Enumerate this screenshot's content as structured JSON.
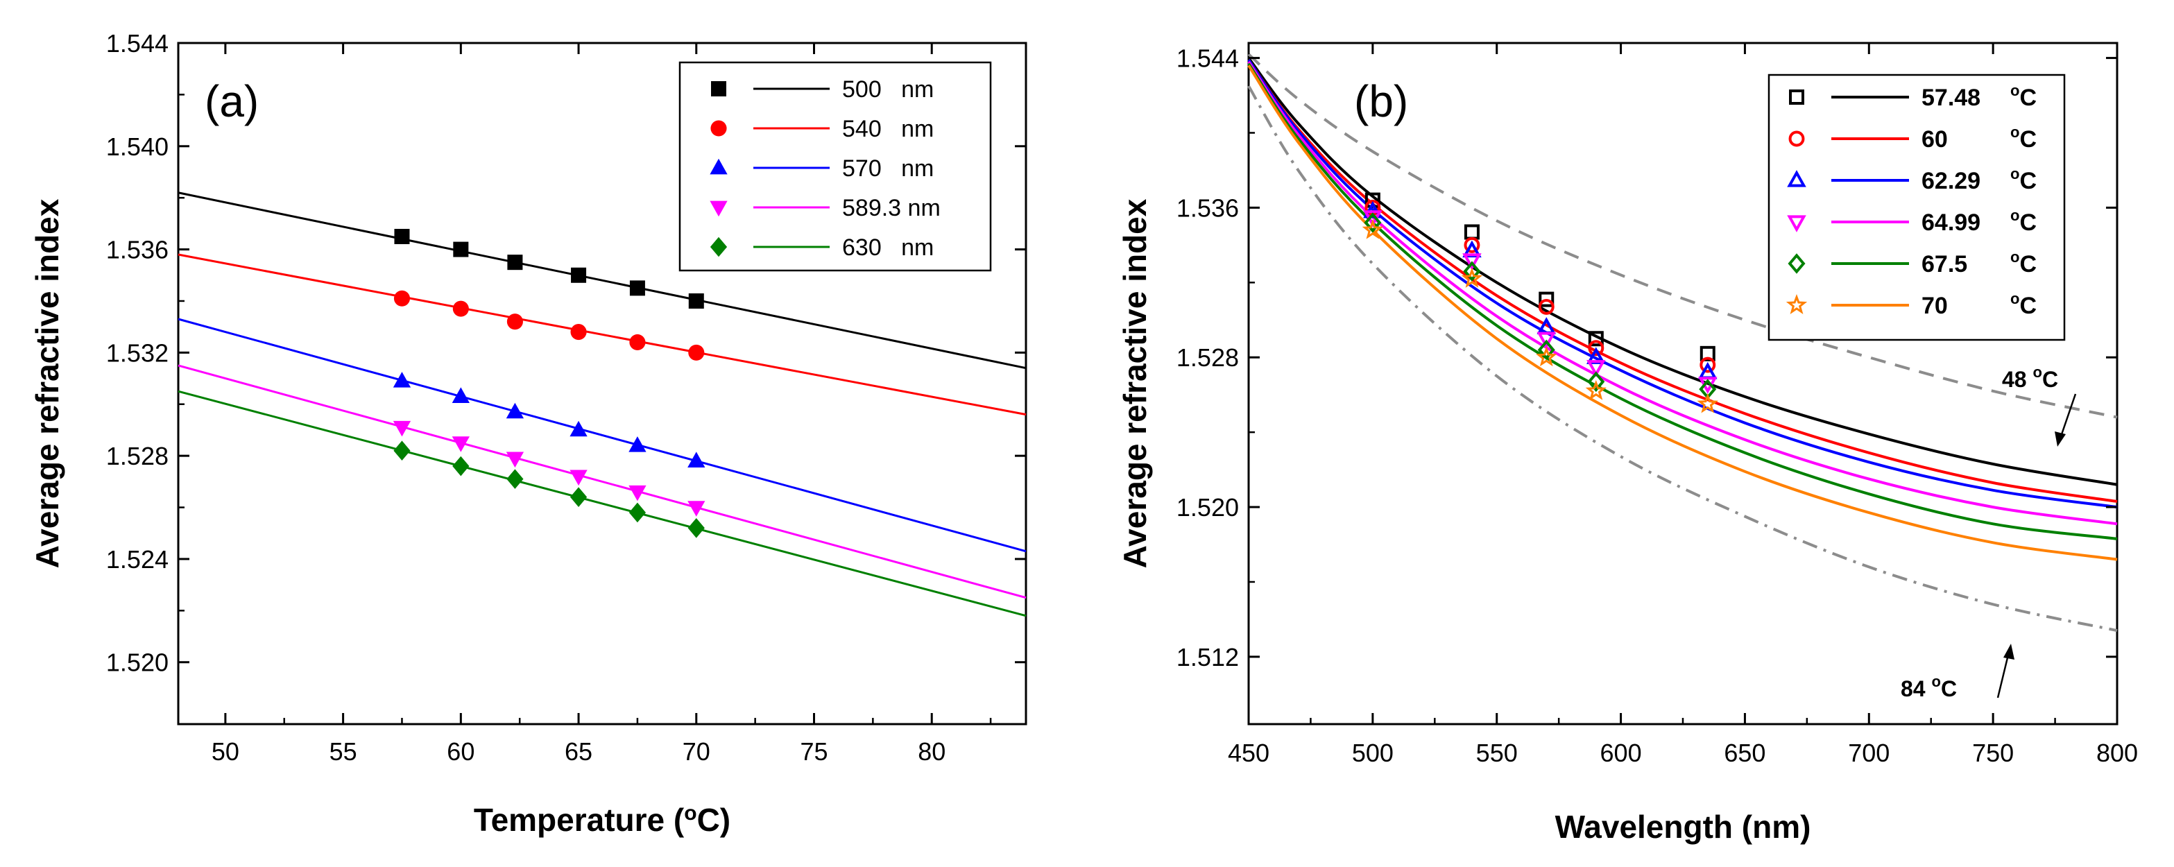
{
  "chart_data": [
    {
      "type": "scatter",
      "panel_label": "(a)",
      "xlabel": "Temperature (",
      "xlabel_sup": "o",
      "xlabel_end": "C)",
      "ylabel": "Average refractive index",
      "xlim": [
        48,
        84
      ],
      "ylim": [
        1.5176,
        1.544
      ],
      "xticks": [
        50,
        55,
        60,
        65,
        70,
        75,
        80
      ],
      "yticks": [
        1.52,
        1.524,
        1.528,
        1.532,
        1.536,
        1.54,
        1.544
      ],
      "ytick_labels": [
        "1.520",
        "1.524",
        "1.528",
        "1.532",
        "1.536",
        "1.540",
        "1.544"
      ],
      "grid": false,
      "legend_position": "top-right",
      "series": [
        {
          "name": "500   nm",
          "color": "#000000",
          "marker": "square",
          "x": [
            57.5,
            60,
            62.3,
            65,
            67.5,
            70
          ],
          "y": [
            1.5365,
            1.536,
            1.5355,
            1.535,
            1.5345,
            1.534
          ],
          "fit": {
            "x": [
              48,
              84
            ],
            "y": [
              1.5382,
              1.5314
            ]
          }
        },
        {
          "name": "540   nm",
          "color": "#ff0000",
          "marker": "circle",
          "x": [
            57.5,
            60,
            62.3,
            65,
            67.5,
            70
          ],
          "y": [
            1.5341,
            1.5337,
            1.5332,
            1.5328,
            1.5324,
            1.532
          ],
          "fit": {
            "x": [
              48,
              84
            ],
            "y": [
              1.5358,
              1.5296
            ]
          }
        },
        {
          "name": "570   nm",
          "color": "#0000ff",
          "marker": "triangle-up",
          "x": [
            57.5,
            60,
            62.3,
            65,
            67.5,
            70
          ],
          "y": [
            1.5309,
            1.5303,
            1.5297,
            1.529,
            1.5284,
            1.5278
          ],
          "fit": {
            "x": [
              48,
              84
            ],
            "y": [
              1.5333,
              1.5243
            ]
          }
        },
        {
          "name": "589.3 nm",
          "color": "#ff00ff",
          "marker": "triangle-down",
          "x": [
            57.5,
            60,
            62.3,
            65,
            67.5,
            70
          ],
          "y": [
            1.5291,
            1.5285,
            1.5279,
            1.5272,
            1.5266,
            1.526
          ],
          "fit": {
            "x": [
              48,
              84
            ],
            "y": [
              1.5315,
              1.5225
            ]
          }
        },
        {
          "name": "630   nm",
          "color": "#008000",
          "marker": "diamond",
          "x": [
            57.5,
            60,
            62.3,
            65,
            67.5,
            70
          ],
          "y": [
            1.5282,
            1.5276,
            1.5271,
            1.5264,
            1.5258,
            1.5252
          ],
          "fit": {
            "x": [
              48,
              84
            ],
            "y": [
              1.5305,
              1.5218
            ]
          }
        }
      ]
    },
    {
      "type": "scatter",
      "panel_label": "(b)",
      "xlabel": "Wavelength (nm)",
      "ylabel": "Average refractive index",
      "xlim": [
        450,
        800
      ],
      "ylim": [
        1.5084,
        1.5448
      ],
      "xticks": [
        450,
        500,
        550,
        600,
        650,
        700,
        750,
        800
      ],
      "yticks": [
        1.512,
        1.52,
        1.528,
        1.536,
        1.544
      ],
      "ytick_labels": [
        "1.512",
        "1.520",
        "1.528",
        "1.536",
        "1.544"
      ],
      "grid": false,
      "legend_position": "top-right",
      "series": [
        {
          "name": "57.48",
          "unit": "C",
          "color": "#000000",
          "marker": "open-square",
          "x": [
            500,
            540,
            570,
            590,
            635
          ],
          "y": [
            1.5364,
            1.5347,
            1.5311,
            1.529,
            1.5282
          ],
          "fit": {
            "x": [
              450,
              470,
              500,
              550,
              600,
              650,
              700,
              750,
              800
            ],
            "y": [
              1.544,
              1.5405,
              1.5366,
              1.532,
              1.5285,
              1.5259,
              1.5239,
              1.5223,
              1.5212
            ]
          }
        },
        {
          "name": "60",
          "unit": "C",
          "color": "#ff0000",
          "marker": "open-circle",
          "x": [
            500,
            540,
            570,
            590,
            635
          ],
          "y": [
            1.536,
            1.534,
            1.5307,
            1.5285,
            1.5276
          ],
          "fit": {
            "x": [
              450,
              470,
              500,
              550,
              600,
              650,
              700,
              750,
              800
            ],
            "y": [
              1.5439,
              1.5402,
              1.5362,
              1.5313,
              1.5277,
              1.525,
              1.5229,
              1.5213,
              1.5203
            ]
          }
        },
        {
          "name": "62.29",
          "unit": "C",
          "color": "#0000ff",
          "marker": "open-triangle-up",
          "x": [
            500,
            540,
            570,
            590,
            635
          ],
          "y": [
            1.5358,
            1.5337,
            1.5296,
            1.528,
            1.5272
          ],
          "fit": {
            "x": [
              450,
              470,
              500,
              550,
              600,
              650,
              700,
              750,
              800
            ],
            "y": [
              1.5439,
              1.5401,
              1.5359,
              1.5309,
              1.5273,
              1.5245,
              1.5224,
              1.5209,
              1.52
            ]
          }
        },
        {
          "name": "64.99",
          "unit": "C",
          "color": "#ff00ff",
          "marker": "open-triangle-down",
          "x": [
            500,
            540,
            570,
            590,
            635
          ],
          "y": [
            1.5355,
            1.5332,
            1.529,
            1.5275,
            1.5266
          ],
          "fit": {
            "x": [
              450,
              470,
              500,
              550,
              600,
              650,
              700,
              750,
              800
            ],
            "y": [
              1.5438,
              1.5399,
              1.5355,
              1.5302,
              1.5264,
              1.5236,
              1.5215,
              1.52,
              1.5191
            ]
          }
        },
        {
          "name": "67.5",
          "unit": "C",
          "color": "#008000",
          "marker": "open-diamond",
          "x": [
            500,
            540,
            570,
            590,
            635
          ],
          "y": [
            1.5352,
            1.5326,
            1.5284,
            1.5267,
            1.5263
          ],
          "fit": {
            "x": [
              450,
              470,
              500,
              550,
              600,
              650,
              700,
              750,
              800
            ],
            "y": [
              1.5437,
              1.5397,
              1.5352,
              1.5297,
              1.5258,
              1.5229,
              1.5207,
              1.5191,
              1.5183
            ]
          }
        },
        {
          "name": "70",
          "unit": "C",
          "color": "#ff8000",
          "marker": "open-star",
          "x": [
            500,
            540,
            570,
            590,
            635
          ],
          "y": [
            1.5348,
            1.5322,
            1.528,
            1.5262,
            1.5255
          ],
          "fit": {
            "x": [
              450,
              470,
              500,
              550,
              600,
              650,
              700,
              750,
              800
            ],
            "y": [
              1.5436,
              1.5395,
              1.5348,
              1.529,
              1.5249,
              1.5219,
              1.5197,
              1.5181,
              1.5172
            ]
          }
        }
      ],
      "reference_curves": [
        {
          "name": "48",
          "unit": "C",
          "color": "#8c8c8c",
          "dash": "dash",
          "x": [
            450,
            470,
            500,
            550,
            600,
            650,
            700,
            750,
            800
          ],
          "y": [
            1.5442,
            1.5418,
            1.539,
            1.5353,
            1.5324,
            1.53,
            1.528,
            1.5262,
            1.5248
          ]
        },
        {
          "name": "84",
          "unit": "C",
          "color": "#8c8c8c",
          "dash": "dashdot",
          "x": [
            450,
            470,
            500,
            550,
            600,
            650,
            700,
            750,
            800
          ],
          "y": [
            1.5425,
            1.538,
            1.533,
            1.527,
            1.5227,
            1.5195,
            1.5168,
            1.5148,
            1.5134
          ]
        }
      ],
      "annotations": [
        {
          "text": "48",
          "unit": "C",
          "x": 775,
          "y": 1.5283
        },
        {
          "text": "84",
          "unit": "C",
          "x": 742,
          "y": 1.5115
        }
      ]
    }
  ],
  "degree_symbol": "o"
}
